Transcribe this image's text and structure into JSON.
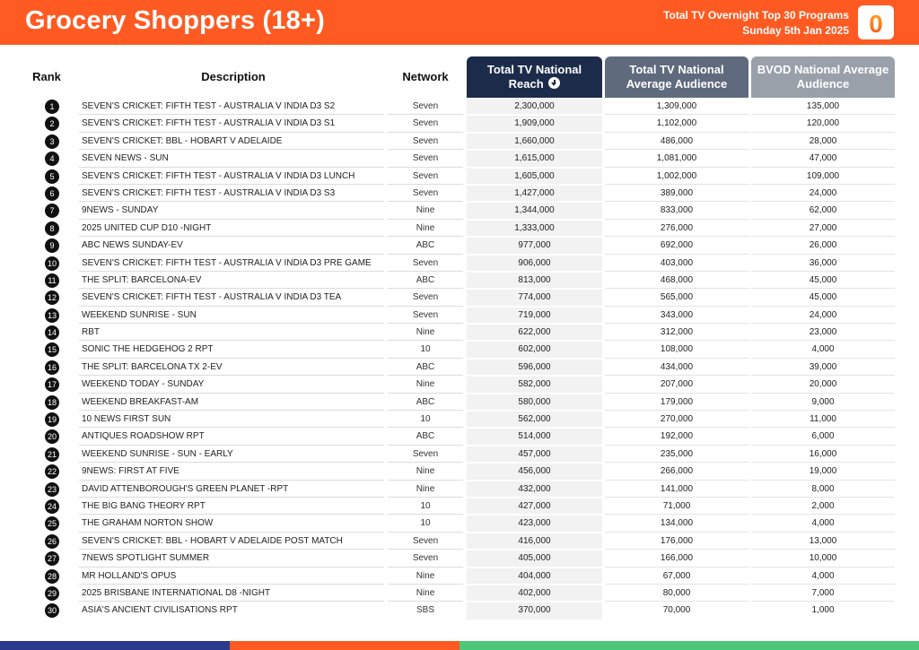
{
  "header": {
    "title": "Grocery Shoppers (18+)",
    "report_name": "Total TV Overnight Top 30 Programs",
    "report_date": "Sunday 5th Jan 2025",
    "logo_letter": "0"
  },
  "columns": {
    "rank": "Rank",
    "description": "Description",
    "network": "Network",
    "reach": "Total TV National Reach",
    "avg": "Total TV National Average Audience",
    "bvod": "BVOD National Average Audience"
  },
  "colors": {
    "header_bg": "#ff5a22",
    "reach_head": "#1c2b4a",
    "avg_head": "#5f6a7d",
    "bvod_head": "#9aa0aa"
  },
  "rows": [
    {
      "rank": "1",
      "description": "SEVEN'S CRICKET: FIFTH TEST - AUSTRALIA V INDIA D3 S2",
      "network": "Seven",
      "reach": "2,300,000",
      "avg": "1,309,000",
      "bvod": "135,000"
    },
    {
      "rank": "2",
      "description": "SEVEN'S CRICKET: FIFTH TEST - AUSTRALIA V INDIA D3 S1",
      "network": "Seven",
      "reach": "1,909,000",
      "avg": "1,102,000",
      "bvod": "120,000"
    },
    {
      "rank": "3",
      "description": "SEVEN'S CRICKET: BBL - HOBART V ADELAIDE",
      "network": "Seven",
      "reach": "1,660,000",
      "avg": "486,000",
      "bvod": "28,000"
    },
    {
      "rank": "4",
      "description": "SEVEN NEWS - SUN",
      "network": "Seven",
      "reach": "1,615,000",
      "avg": "1,081,000",
      "bvod": "47,000"
    },
    {
      "rank": "5",
      "description": "SEVEN'S CRICKET: FIFTH TEST - AUSTRALIA V INDIA D3 LUNCH",
      "network": "Seven",
      "reach": "1,605,000",
      "avg": "1,002,000",
      "bvod": "109,000"
    },
    {
      "rank": "6",
      "description": "SEVEN'S CRICKET: FIFTH TEST - AUSTRALIA V INDIA D3 S3",
      "network": "Seven",
      "reach": "1,427,000",
      "avg": "389,000",
      "bvod": "24,000"
    },
    {
      "rank": "7",
      "description": "9NEWS - SUNDAY",
      "network": "Nine",
      "reach": "1,344,000",
      "avg": "833,000",
      "bvod": "62,000"
    },
    {
      "rank": "8",
      "description": "2025 UNITED CUP D10 -NIGHT",
      "network": "Nine",
      "reach": "1,333,000",
      "avg": "276,000",
      "bvod": "27,000"
    },
    {
      "rank": "9",
      "description": "ABC NEWS SUNDAY-EV",
      "network": "ABC",
      "reach": "977,000",
      "avg": "692,000",
      "bvod": "26,000"
    },
    {
      "rank": "10",
      "description": "SEVEN'S CRICKET: FIFTH TEST - AUSTRALIA V INDIA D3 PRE GAME",
      "network": "Seven",
      "reach": "906,000",
      "avg": "403,000",
      "bvod": "36,000"
    },
    {
      "rank": "11",
      "description": "THE SPLIT: BARCELONA-EV",
      "network": "ABC",
      "reach": "813,000",
      "avg": "468,000",
      "bvod": "45,000"
    },
    {
      "rank": "12",
      "description": "SEVEN'S CRICKET: FIFTH TEST - AUSTRALIA V INDIA D3 TEA",
      "network": "Seven",
      "reach": "774,000",
      "avg": "565,000",
      "bvod": "45,000"
    },
    {
      "rank": "13",
      "description": "WEEKEND SUNRISE - SUN",
      "network": "Seven",
      "reach": "719,000",
      "avg": "343,000",
      "bvod": "24,000"
    },
    {
      "rank": "14",
      "description": "RBT",
      "network": "Nine",
      "reach": "622,000",
      "avg": "312,000",
      "bvod": "23,000"
    },
    {
      "rank": "15",
      "description": "SONIC THE HEDGEHOG 2 RPT",
      "network": "10",
      "reach": "602,000",
      "avg": "108,000",
      "bvod": "4,000"
    },
    {
      "rank": "16",
      "description": "THE SPLIT: BARCELONA TX 2-EV",
      "network": "ABC",
      "reach": "596,000",
      "avg": "434,000",
      "bvod": "39,000"
    },
    {
      "rank": "17",
      "description": "WEEKEND TODAY - SUNDAY",
      "network": "Nine",
      "reach": "582,000",
      "avg": "207,000",
      "bvod": "20,000"
    },
    {
      "rank": "18",
      "description": "WEEKEND BREAKFAST-AM",
      "network": "ABC",
      "reach": "580,000",
      "avg": "179,000",
      "bvod": "9,000"
    },
    {
      "rank": "19",
      "description": "10 NEWS FIRST SUN",
      "network": "10",
      "reach": "562,000",
      "avg": "270,000",
      "bvod": "11,000"
    },
    {
      "rank": "20",
      "description": "ANTIQUES ROADSHOW RPT",
      "network": "ABC",
      "reach": "514,000",
      "avg": "192,000",
      "bvod": "6,000"
    },
    {
      "rank": "21",
      "description": "WEEKEND SUNRISE - SUN - EARLY",
      "network": "Seven",
      "reach": "457,000",
      "avg": "235,000",
      "bvod": "16,000"
    },
    {
      "rank": "22",
      "description": "9NEWS: FIRST AT FIVE",
      "network": "Nine",
      "reach": "456,000",
      "avg": "266,000",
      "bvod": "19,000"
    },
    {
      "rank": "23",
      "description": "DAVID ATTENBOROUGH'S GREEN PLANET -RPT",
      "network": "Nine",
      "reach": "432,000",
      "avg": "141,000",
      "bvod": "8,000"
    },
    {
      "rank": "24",
      "description": "THE BIG BANG THEORY RPT",
      "network": "10",
      "reach": "427,000",
      "avg": "71,000",
      "bvod": "2,000"
    },
    {
      "rank": "25",
      "description": "THE GRAHAM NORTON SHOW",
      "network": "10",
      "reach": "423,000",
      "avg": "134,000",
      "bvod": "4,000"
    },
    {
      "rank": "26",
      "description": "SEVEN'S CRICKET: BBL - HOBART V ADELAIDE POST MATCH",
      "network": "Seven",
      "reach": "416,000",
      "avg": "176,000",
      "bvod": "13,000"
    },
    {
      "rank": "27",
      "description": "7NEWS SPOTLIGHT SUMMER",
      "network": "Seven",
      "reach": "405,000",
      "avg": "166,000",
      "bvod": "10,000"
    },
    {
      "rank": "28",
      "description": "MR HOLLAND'S OPUS",
      "network": "Nine",
      "reach": "404,000",
      "avg": "67,000",
      "bvod": "4,000"
    },
    {
      "rank": "29",
      "description": "2025 BRISBANE INTERNATIONAL D8 -NIGHT",
      "network": "Nine",
      "reach": "402,000",
      "avg": "80,000",
      "bvod": "7,000"
    },
    {
      "rank": "30",
      "description": "ASIA'S ANCIENT CIVILISATIONS RPT",
      "network": "SBS",
      "reach": "370,000",
      "avg": "70,000",
      "bvod": "1,000"
    }
  ]
}
